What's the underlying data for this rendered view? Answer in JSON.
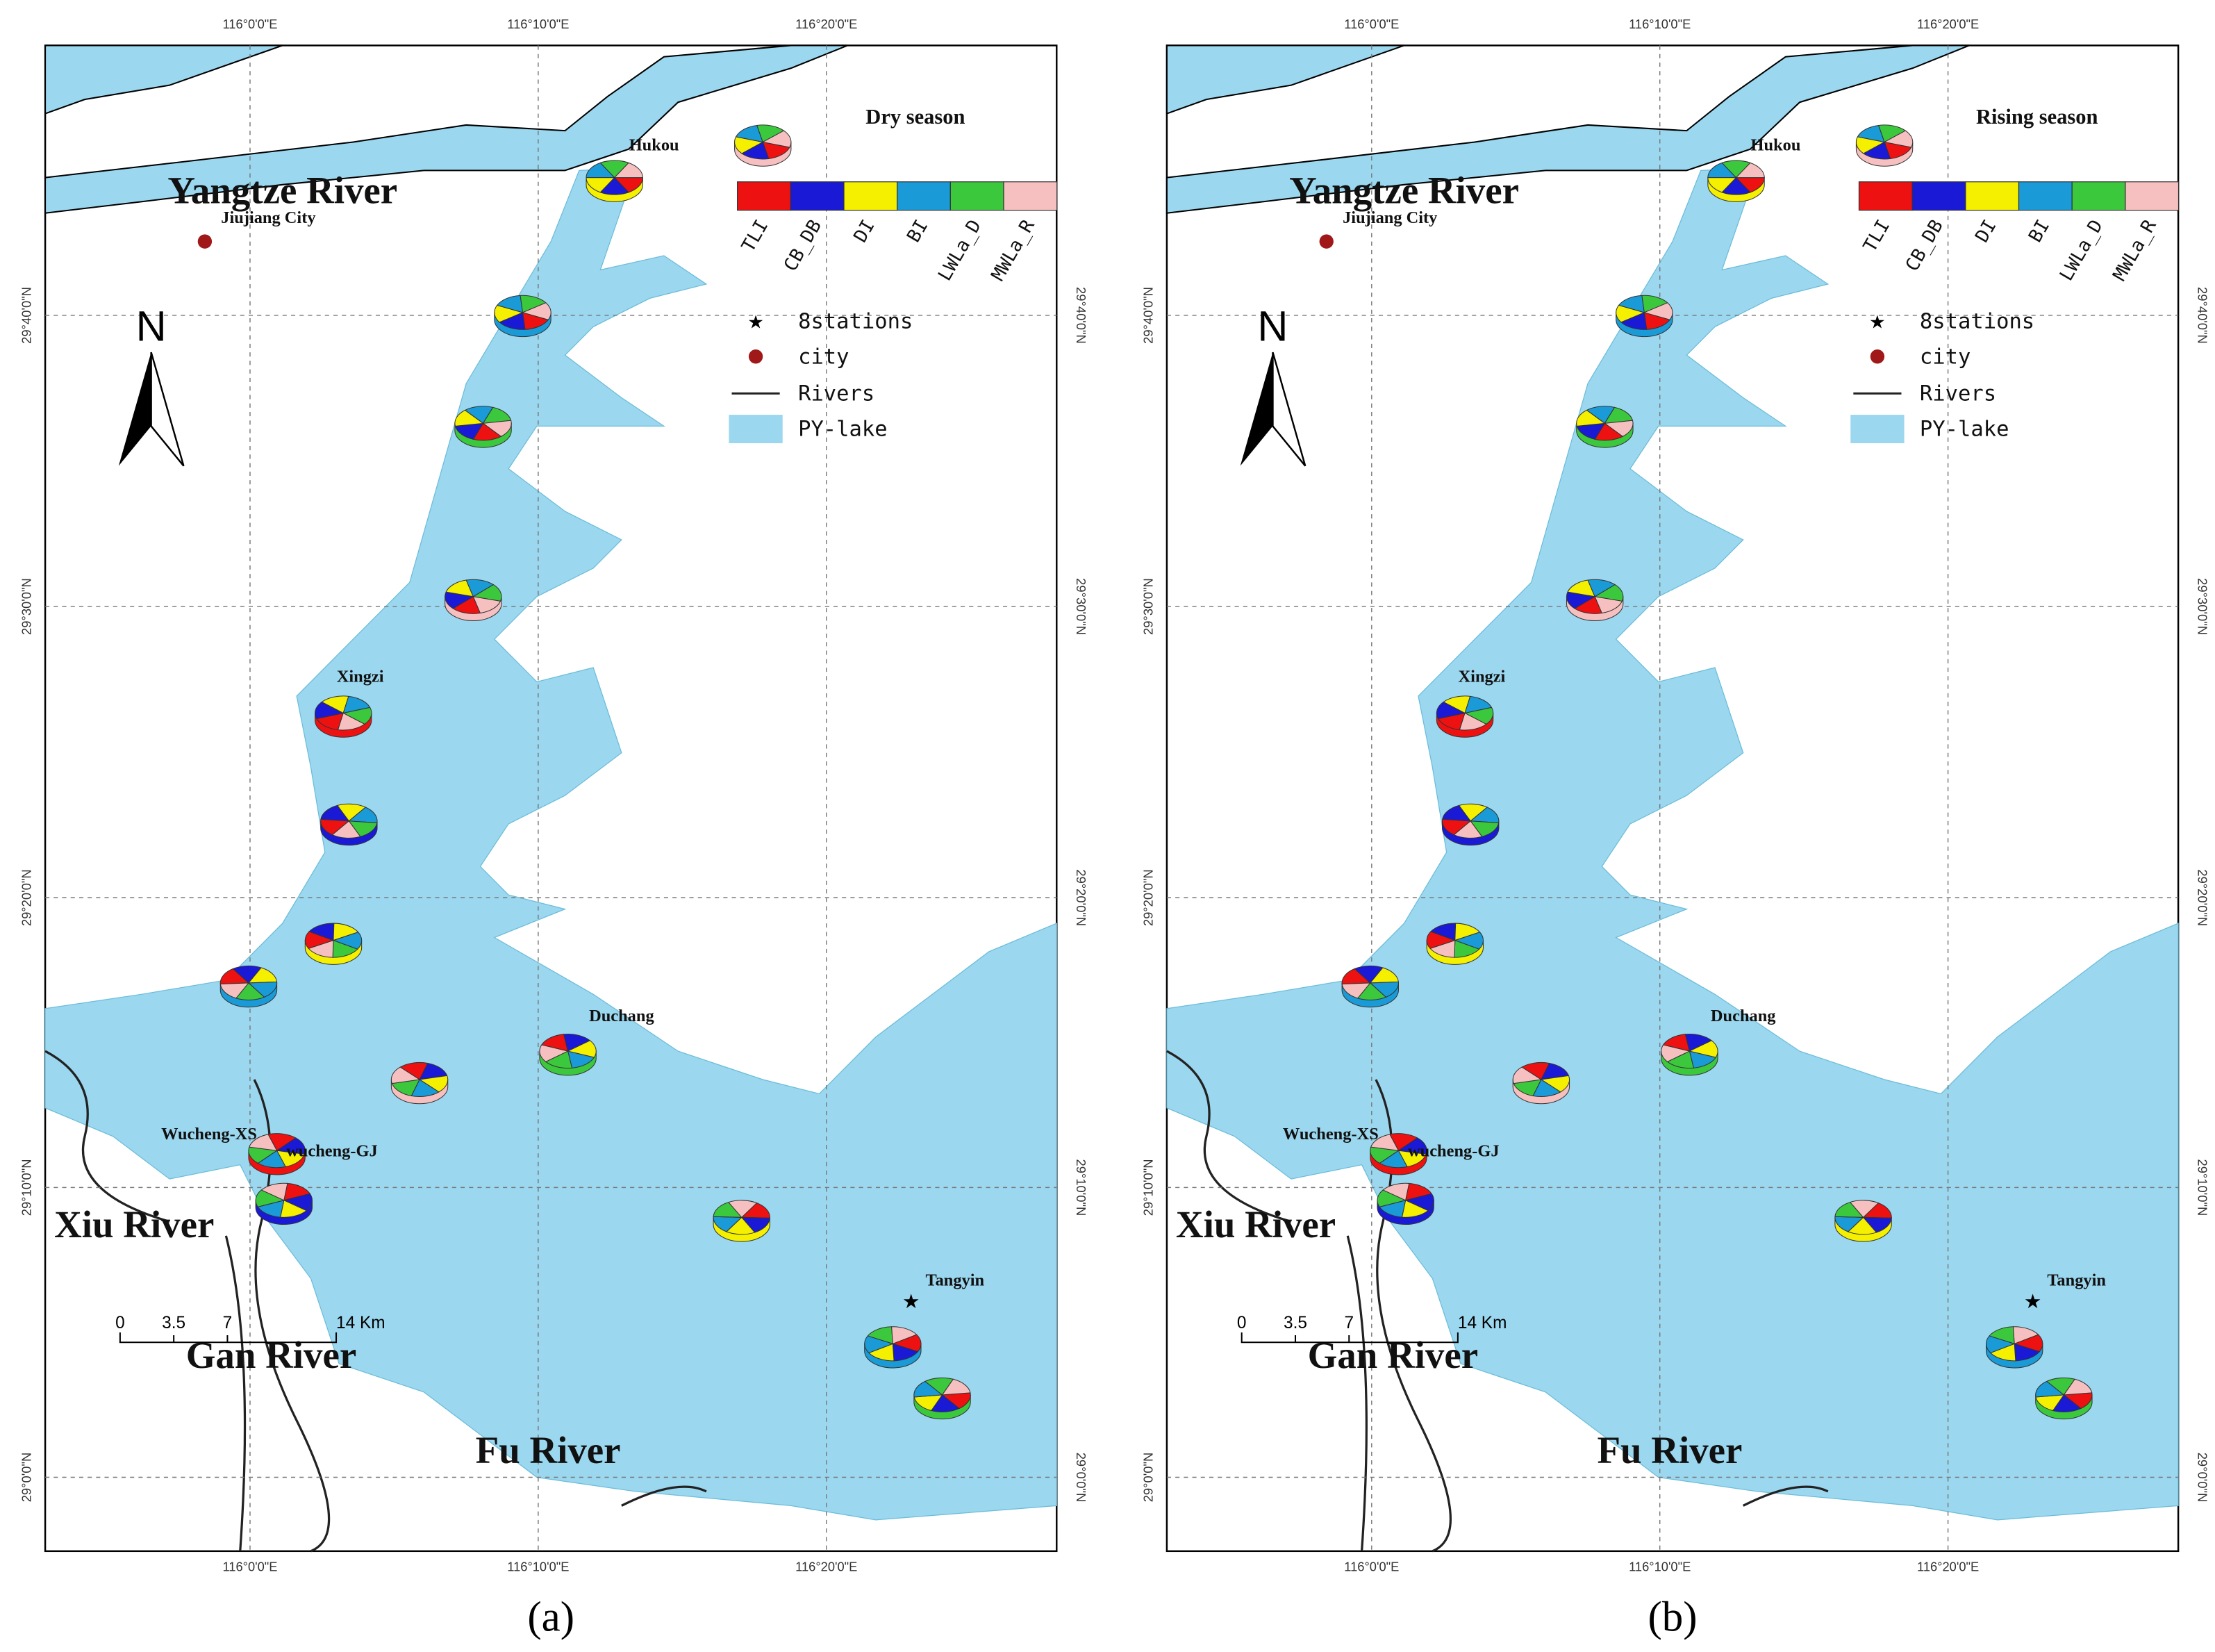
{
  "panels": [
    {
      "label": "(a)",
      "title": "Dry season"
    },
    {
      "label": "(b)",
      "title": "Rising season"
    }
  ],
  "map": {
    "longitude_labels": [
      "116°0'0\"E",
      "116°10'0\"E",
      "116°20'0\"E"
    ],
    "latitude_labels": [
      "29°40'0\"N",
      "29°30'0\"N",
      "29°20'0\"N",
      "29°10'0\"N",
      "29°0'0\"N"
    ],
    "places": [
      "Yangtze River",
      "Jiujiang City",
      "Hukou",
      "Xingzi",
      "Duchang",
      "Wucheng-XS",
      "wucheng-GJ",
      "Tangyin",
      "Xiu River",
      "Gan River",
      "Fu River"
    ],
    "indices": [
      {
        "label": "TLI",
        "color": "#ee1111"
      },
      {
        "label": "CB_DB",
        "color": "#1a1ad6"
      },
      {
        "label": "DI",
        "color": "#f5f000"
      },
      {
        "label": "BI",
        "color": "#1a9ad6"
      },
      {
        "label": "LWLa_D",
        "color": "#3cc83c"
      },
      {
        "label": "MWLa_R",
        "color": "#f7c0c0"
      }
    ],
    "symbols": [
      "8stations",
      "city",
      "Rivers",
      "PY-lake"
    ],
    "north": "N",
    "scale": [
      "0",
      "3.5",
      "7",
      "14 Km"
    ]
  }
}
